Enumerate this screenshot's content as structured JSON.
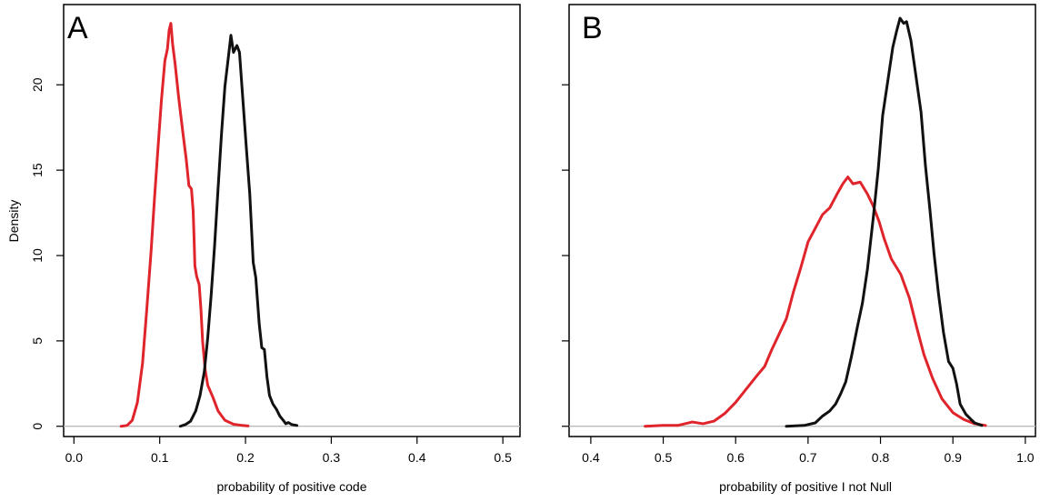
{
  "chart_data": [
    {
      "type": "line",
      "panel_label": "A",
      "xlabel": "probability of positive code",
      "ylabel": "Density",
      "xlim": [
        -0.012,
        0.52
      ],
      "ylim": [
        -0.6,
        24.7
      ],
      "xticks": [
        0.0,
        0.1,
        0.2,
        0.3,
        0.4,
        0.5
      ],
      "xtick_labels": [
        "0.0",
        "0.1",
        "0.2",
        "0.3",
        "0.4",
        "0.5"
      ],
      "yticks": [
        0,
        5,
        10,
        15,
        20
      ],
      "ytick_labels": [
        "0",
        "5",
        "10",
        "15",
        "20"
      ],
      "baseline": 0,
      "series": [
        {
          "color": "#e0242b",
          "points": [
            [
              0.055,
              0
            ],
            [
              0.062,
              0.05
            ],
            [
              0.068,
              0.35
            ],
            [
              0.074,
              1.4
            ],
            [
              0.08,
              3.7
            ],
            [
              0.085,
              6.9
            ],
            [
              0.09,
              10.3
            ],
            [
              0.094,
              13.4
            ],
            [
              0.098,
              16.3
            ],
            [
              0.102,
              19.1
            ],
            [
              0.106,
              21.4
            ],
            [
              0.109,
              22.1
            ],
            [
              0.111,
              23.2
            ],
            [
              0.113,
              23.6
            ],
            [
              0.115,
              22.4
            ],
            [
              0.118,
              21.2
            ],
            [
              0.122,
              19.3
            ],
            [
              0.127,
              17.2
            ],
            [
              0.131,
              15.6
            ],
            [
              0.134,
              14.1
            ],
            [
              0.137,
              13.9
            ],
            [
              0.139,
              12.6
            ],
            [
              0.14,
              11.1
            ],
            [
              0.141,
              9.4
            ],
            [
              0.143,
              8.8
            ],
            [
              0.146,
              8.3
            ],
            [
              0.148,
              6.9
            ],
            [
              0.15,
              5.0
            ],
            [
              0.153,
              3.3
            ],
            [
              0.156,
              2.4
            ],
            [
              0.162,
              1.7
            ],
            [
              0.168,
              0.9
            ],
            [
              0.176,
              0.35
            ],
            [
              0.186,
              0.12
            ],
            [
              0.196,
              0.05
            ],
            [
              0.203,
              0.02
            ]
          ]
        },
        {
          "color": "#111111",
          "points": [
            [
              0.124,
              0
            ],
            [
              0.13,
              0.1
            ],
            [
              0.136,
              0.3
            ],
            [
              0.142,
              0.9
            ],
            [
              0.147,
              1.8
            ],
            [
              0.152,
              3.2
            ],
            [
              0.156,
              5.2
            ],
            [
              0.16,
              7.7
            ],
            [
              0.164,
              10.6
            ],
            [
              0.168,
              13.9
            ],
            [
              0.172,
              17.1
            ],
            [
              0.176,
              19.9
            ],
            [
              0.18,
              21.6
            ],
            [
              0.183,
              22.9
            ],
            [
              0.186,
              21.9
            ],
            [
              0.19,
              22.3
            ],
            [
              0.193,
              21.9
            ],
            [
              0.197,
              19.1
            ],
            [
              0.201,
              16.3
            ],
            [
              0.205,
              13.6
            ],
            [
              0.209,
              9.6
            ],
            [
              0.212,
              8.7
            ],
            [
              0.216,
              6.0
            ],
            [
              0.219,
              4.6
            ],
            [
              0.222,
              4.5
            ],
            [
              0.225,
              2.9
            ],
            [
              0.228,
              1.8
            ],
            [
              0.232,
              1.3
            ],
            [
              0.236,
              1.0
            ],
            [
              0.24,
              0.6
            ],
            [
              0.244,
              0.35
            ],
            [
              0.247,
              0.15
            ],
            [
              0.25,
              0.22
            ],
            [
              0.254,
              0.1
            ],
            [
              0.26,
              0.05
            ]
          ]
        }
      ]
    },
    {
      "type": "line",
      "panel_label": "B",
      "xlabel": "probability of positive I not Null",
      "ylabel": "",
      "xlim": [
        0.37,
        1.014
      ],
      "ylim": [
        -0.6,
        24.7
      ],
      "xticks": [
        0.4,
        0.5,
        0.6,
        0.7,
        0.8,
        0.9,
        1.0
      ],
      "xtick_labels": [
        "0.4",
        "0.5",
        "0.6",
        "0.7",
        "0.8",
        "0.9",
        "1.0"
      ],
      "yticks": [
        0,
        5,
        10,
        15,
        20
      ],
      "ytick_labels": [],
      "baseline": 0,
      "series": [
        {
          "color": "#e0242b",
          "points": [
            [
              0.475,
              0
            ],
            [
              0.5,
              0.05
            ],
            [
              0.52,
              0.05
            ],
            [
              0.54,
              0.25
            ],
            [
              0.555,
              0.15
            ],
            [
              0.57,
              0.3
            ],
            [
              0.585,
              0.75
            ],
            [
              0.6,
              1.4
            ],
            [
              0.615,
              2.2
            ],
            [
              0.63,
              3.0
            ],
            [
              0.64,
              3.5
            ],
            [
              0.65,
              4.5
            ],
            [
              0.66,
              5.4
            ],
            [
              0.67,
              6.3
            ],
            [
              0.68,
              7.9
            ],
            [
              0.69,
              9.3
            ],
            [
              0.7,
              10.8
            ],
            [
              0.71,
              11.6
            ],
            [
              0.72,
              12.4
            ],
            [
              0.73,
              12.8
            ],
            [
              0.74,
              13.6
            ],
            [
              0.748,
              14.2
            ],
            [
              0.755,
              14.6
            ],
            [
              0.762,
              14.2
            ],
            [
              0.772,
              14.3
            ],
            [
              0.782,
              13.6
            ],
            [
              0.79,
              12.9
            ],
            [
              0.798,
              12.0
            ],
            [
              0.805,
              11.0
            ],
            [
              0.815,
              9.8
            ],
            [
              0.828,
              8.9
            ],
            [
              0.84,
              7.5
            ],
            [
              0.85,
              5.8
            ],
            [
              0.86,
              4.2
            ],
            [
              0.872,
              2.8
            ],
            [
              0.885,
              1.6
            ],
            [
              0.9,
              0.8
            ],
            [
              0.915,
              0.4
            ],
            [
              0.93,
              0.15
            ],
            [
              0.945,
              0.05
            ]
          ]
        },
        {
          "color": "#111111",
          "points": [
            [
              0.67,
              0
            ],
            [
              0.695,
              0.05
            ],
            [
              0.71,
              0.2
            ],
            [
              0.72,
              0.6
            ],
            [
              0.73,
              0.9
            ],
            [
              0.738,
              1.3
            ],
            [
              0.745,
              1.9
            ],
            [
              0.752,
              2.6
            ],
            [
              0.76,
              4.1
            ],
            [
              0.768,
              5.8
            ],
            [
              0.775,
              7.2
            ],
            [
              0.782,
              9.2
            ],
            [
              0.79,
              12.2
            ],
            [
              0.797,
              15.1
            ],
            [
              0.803,
              18.2
            ],
            [
              0.81,
              20.2
            ],
            [
              0.817,
              22.2
            ],
            [
              0.822,
              23.1
            ],
            [
              0.827,
              23.9
            ],
            [
              0.832,
              23.6
            ],
            [
              0.836,
              23.7
            ],
            [
              0.842,
              22.6
            ],
            [
              0.848,
              20.8
            ],
            [
              0.856,
              18.4
            ],
            [
              0.862,
              15.3
            ],
            [
              0.868,
              12.8
            ],
            [
              0.874,
              10.1
            ],
            [
              0.88,
              7.8
            ],
            [
              0.887,
              5.5
            ],
            [
              0.894,
              3.8
            ],
            [
              0.9,
              3.4
            ],
            [
              0.905,
              2.5
            ],
            [
              0.91,
              1.3
            ],
            [
              0.918,
              0.7
            ],
            [
              0.925,
              0.4
            ],
            [
              0.93,
              0.2
            ],
            [
              0.94,
              0.05
            ]
          ]
        }
      ]
    }
  ]
}
